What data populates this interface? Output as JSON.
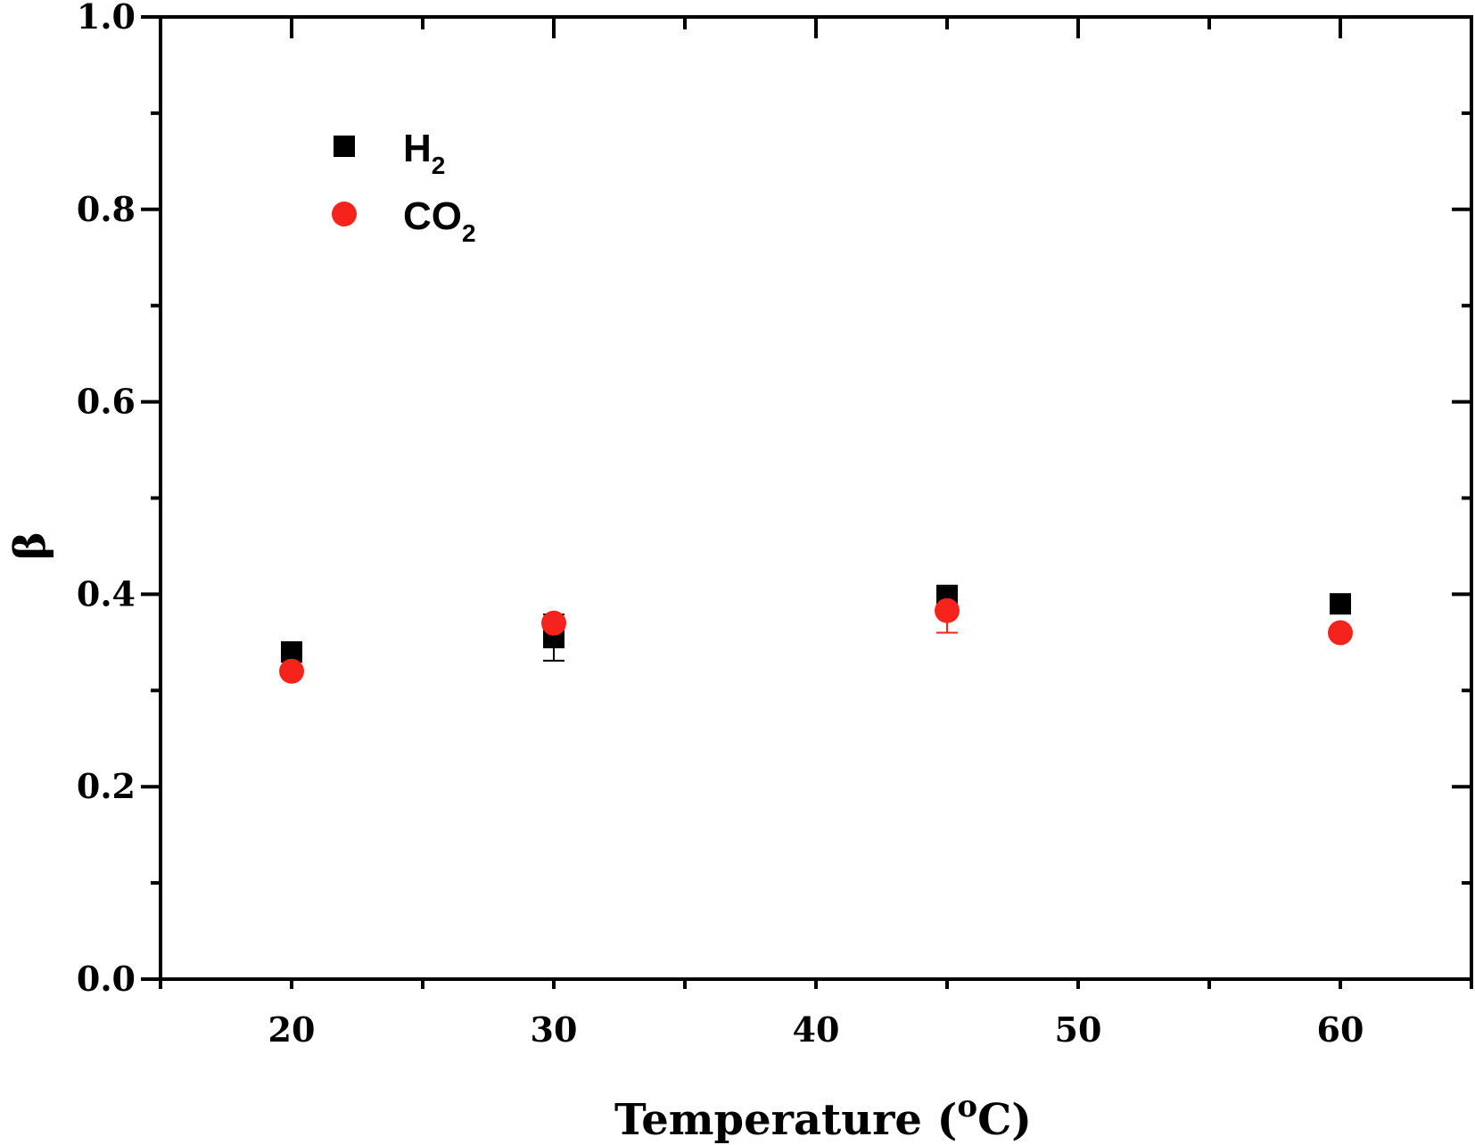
{
  "chart_data": {
    "type": "scatter",
    "xlabel": "Temperature (",
    "xlabel_sup": "o",
    "xlabel_tail": "C)",
    "ylabel": "β",
    "xlim": [
      15,
      65
    ],
    "ylim": [
      0.0,
      1.0
    ],
    "x_ticks": [
      20,
      30,
      40,
      50,
      60
    ],
    "x_tick_labels": [
      "20",
      "30",
      "40",
      "50",
      "60"
    ],
    "y_ticks": [
      0.0,
      0.2,
      0.4,
      0.6,
      0.8,
      1.0
    ],
    "y_tick_labels": [
      "0.0",
      "0.2",
      "0.4",
      "0.6",
      "0.8",
      "1.0"
    ],
    "x_minor_step": 5,
    "y_minor_step": 0.1,
    "grid": false,
    "legend_position": "top-left",
    "series": [
      {
        "name": "H",
        "name_sub": "2",
        "marker": "square",
        "color": "#000000",
        "points": [
          {
            "x": 20,
            "y": 0.34,
            "err": 0.0
          },
          {
            "x": 30,
            "y": 0.355,
            "err": 0.024
          },
          {
            "x": 45,
            "y": 0.397,
            "err": 0.012
          },
          {
            "x": 60,
            "y": 0.39,
            "err": 0.0
          }
        ]
      },
      {
        "name": "CO",
        "name_sub": "2",
        "marker": "circle",
        "color": "#f5231b",
        "points": [
          {
            "x": 20,
            "y": 0.32,
            "err": 0.0
          },
          {
            "x": 30,
            "y": 0.37,
            "err": 0.0
          },
          {
            "x": 45,
            "y": 0.383,
            "err": 0.023
          },
          {
            "x": 60,
            "y": 0.36,
            "err": 0.0
          }
        ]
      }
    ]
  }
}
